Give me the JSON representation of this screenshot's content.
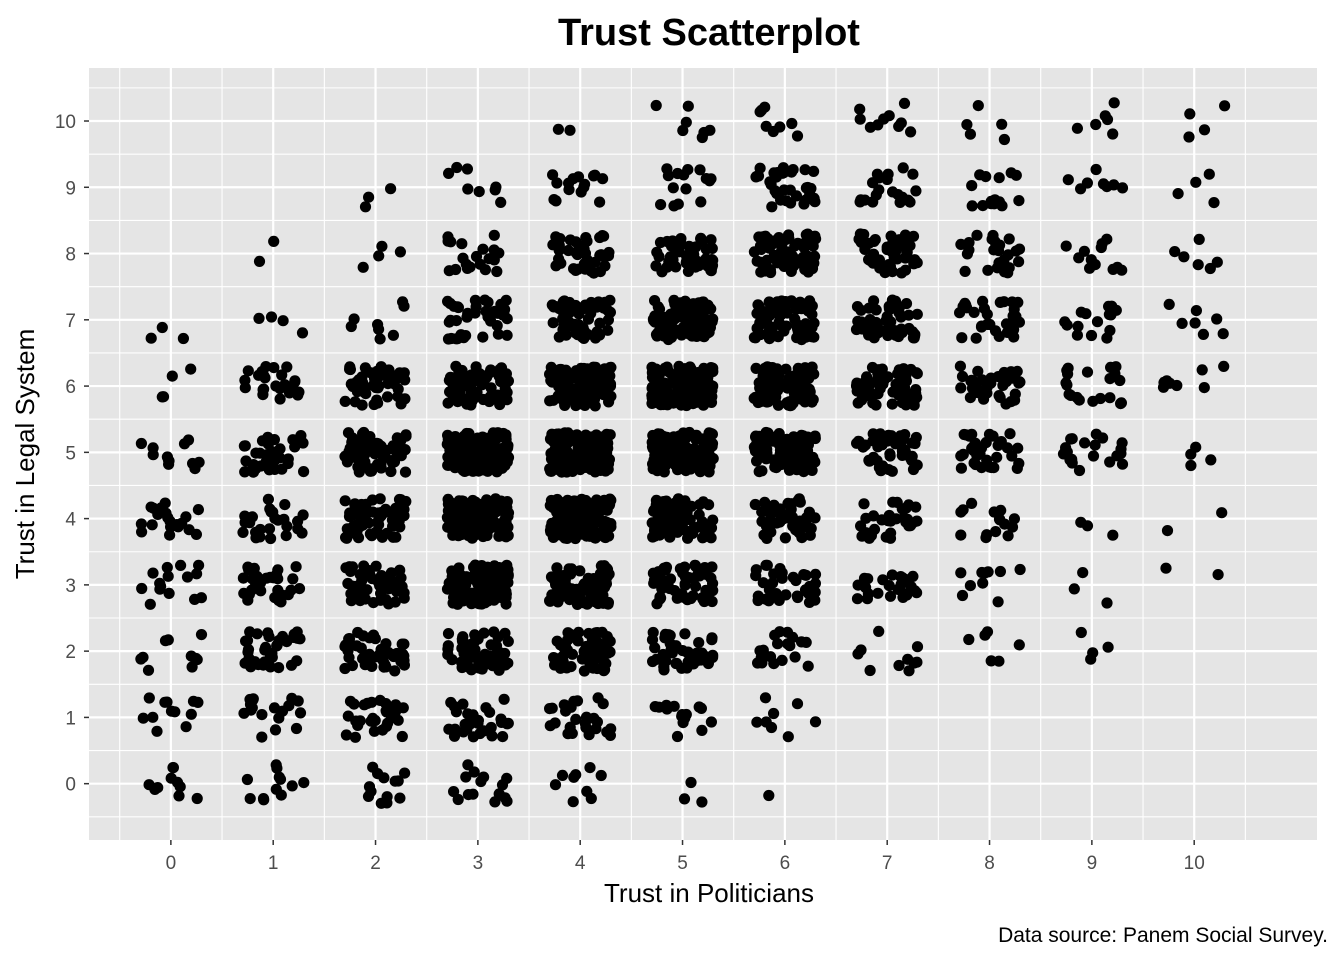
{
  "chart_data": {
    "type": "scatter",
    "title": "Trust Scatterplot",
    "xlabel": "Trust in Politicians",
    "ylabel": "Trust in Legal System",
    "caption": "Data source: Panem Social Survey.",
    "xlim": [
      -0.8,
      11.2
    ],
    "ylim": [
      -0.85,
      10.8
    ],
    "x_ticks": [
      0,
      1,
      2,
      3,
      4,
      5,
      6,
      7,
      8,
      9,
      10
    ],
    "y_ticks": [
      0,
      1,
      2,
      3,
      4,
      5,
      6,
      7,
      8,
      9,
      10
    ],
    "grid": true,
    "jitter": 0.3,
    "background_color": "#e5e5e5",
    "point_color": "#000000",
    "x_categories": [
      0,
      1,
      2,
      3,
      4,
      5,
      6,
      7,
      8,
      9,
      10
    ],
    "y_categories": [
      0,
      1,
      2,
      3,
      4,
      5,
      6,
      7,
      8,
      9,
      10
    ],
    "counts": [
      [
        10,
        12,
        13,
        15,
        9,
        3,
        1,
        0,
        0,
        0,
        0
      ],
      [
        12,
        18,
        30,
        28,
        25,
        15,
        8,
        0,
        0,
        0,
        0
      ],
      [
        10,
        35,
        45,
        55,
        60,
        40,
        20,
        10,
        6,
        4,
        0
      ],
      [
        15,
        30,
        55,
        120,
        100,
        60,
        35,
        25,
        10,
        3,
        2
      ],
      [
        20,
        25,
        70,
        160,
        180,
        90,
        45,
        30,
        15,
        3,
        2
      ],
      [
        12,
        35,
        60,
        150,
        160,
        150,
        90,
        50,
        35,
        20,
        4
      ],
      [
        4,
        25,
        50,
        80,
        120,
        150,
        110,
        60,
        35,
        20,
        8
      ],
      [
        3,
        4,
        8,
        40,
        60,
        100,
        80,
        50,
        30,
        15,
        7
      ],
      [
        0,
        2,
        4,
        20,
        40,
        50,
        70,
        45,
        25,
        12,
        6
      ],
      [
        0,
        0,
        3,
        8,
        15,
        15,
        35,
        20,
        15,
        8,
        4
      ],
      [
        0,
        0,
        0,
        0,
        2,
        7,
        8,
        10,
        5,
        6,
        4
      ]
    ]
  }
}
